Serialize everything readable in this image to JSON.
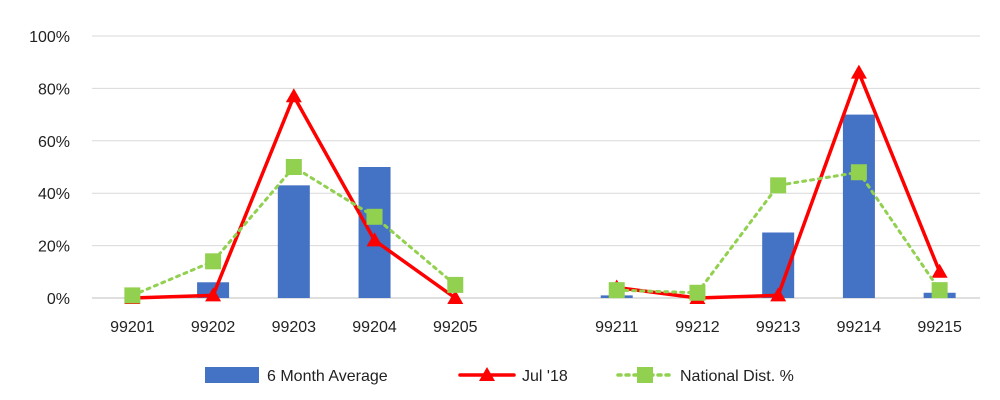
{
  "chart_data": {
    "type": "bar",
    "title": "",
    "xlabel": "",
    "ylabel": "",
    "ylim": [
      0,
      100
    ],
    "y_unit": "%",
    "y_ticks": [
      0,
      20,
      40,
      60,
      80,
      100
    ],
    "y_tick_labels": [
      "0%",
      "20%",
      "40%",
      "60%",
      "80%",
      "100%"
    ],
    "categories": [
      "99201",
      "99202",
      "99203",
      "99204",
      "99205",
      "",
      "99211",
      "99212",
      "99213",
      "99214",
      "99215"
    ],
    "grid": "horizontal",
    "legend_position": "bottom",
    "series": [
      {
        "name": "6 Month Average",
        "kind": "bar",
        "color": "#4472C4",
        "values": [
          0,
          6,
          43,
          50,
          0,
          null,
          1,
          0,
          25,
          70,
          2
        ]
      },
      {
        "name": "Jul '18",
        "kind": "line",
        "marker": "triangle",
        "color": "#FF0000",
        "values": [
          0,
          1,
          77,
          22,
          0,
          null,
          4,
          0,
          1,
          86,
          10
        ]
      },
      {
        "name": "National Dist. %",
        "kind": "line",
        "marker": "square",
        "line_style": "dotted",
        "color": "#92D050",
        "values": [
          1,
          14,
          50,
          31,
          5,
          null,
          3,
          2,
          43,
          48,
          3
        ]
      }
    ]
  }
}
